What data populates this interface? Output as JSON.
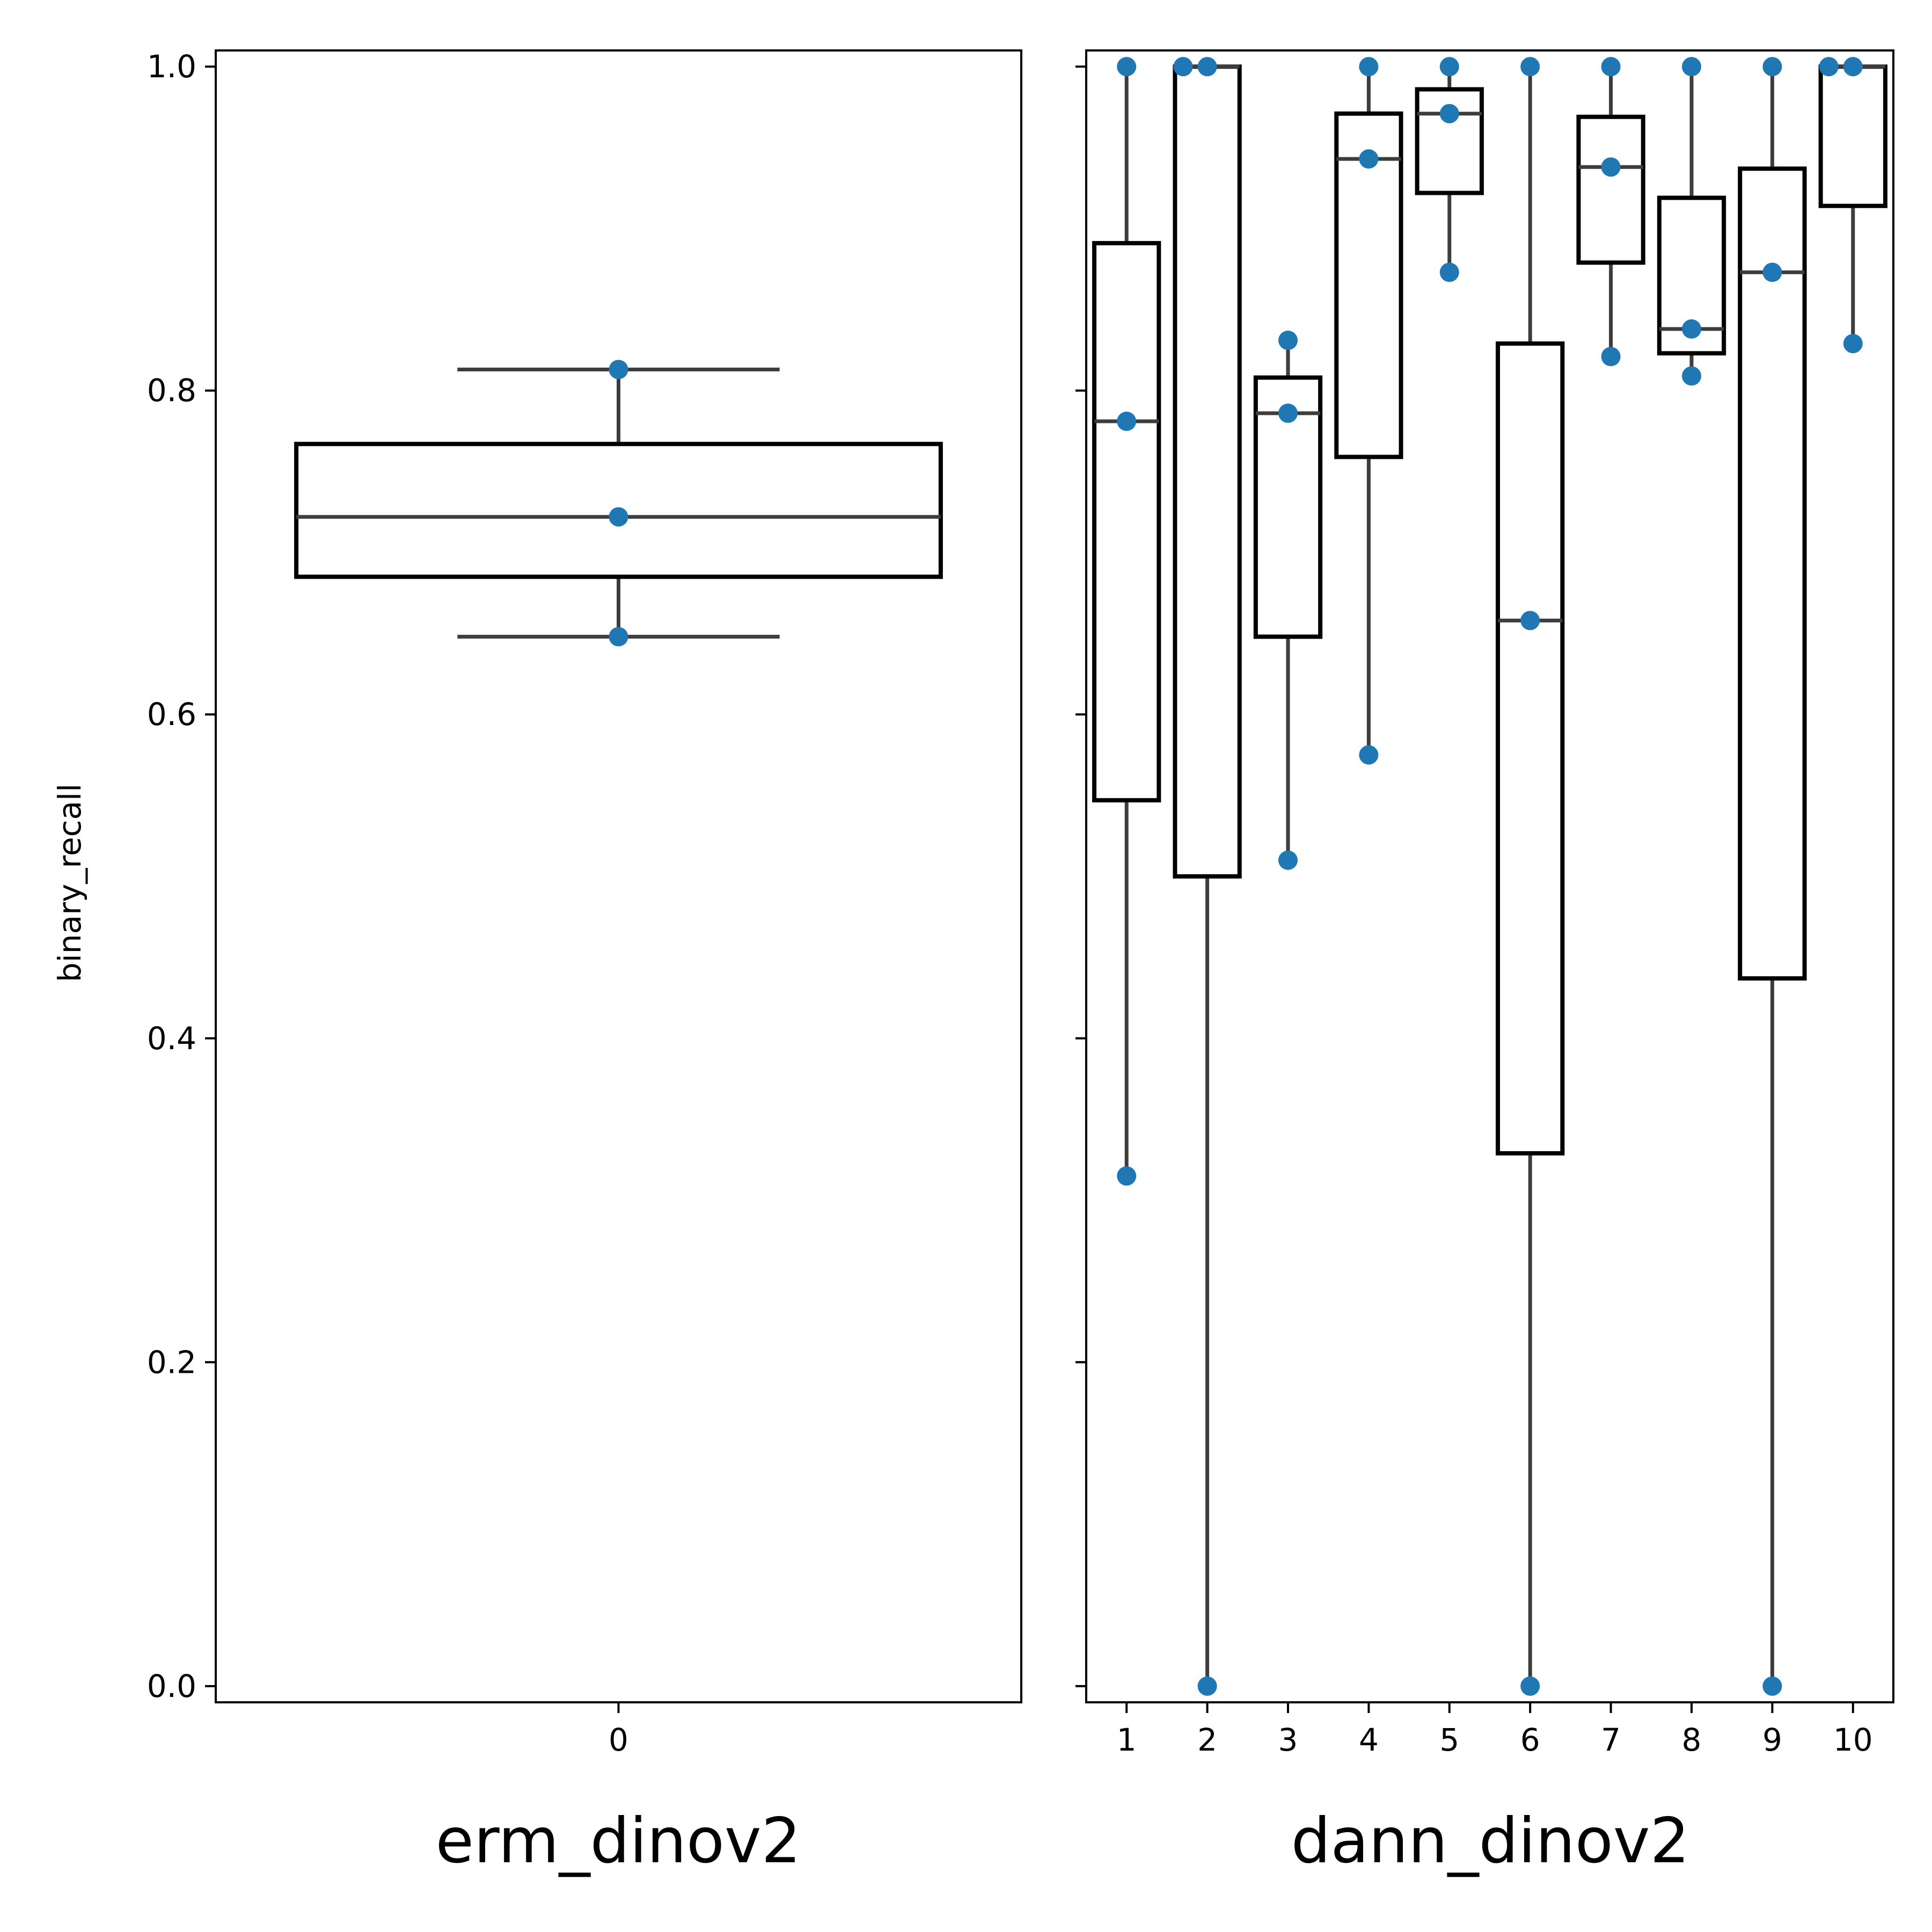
{
  "chart_data": [
    {
      "type": "box",
      "xlabel": "erm_dinov2",
      "ylabel": "binary_recall",
      "ylim": [
        -0.01,
        1.01
      ],
      "yticks": [
        "0.0",
        "0.2",
        "0.4",
        "0.6",
        "0.8",
        "1.0"
      ],
      "categories": [
        "0"
      ],
      "boxes": [
        {
          "category": "0",
          "whislo": 0.648,
          "q1": 0.685,
          "median": 0.722,
          "q3": 0.767,
          "whishi": 0.813,
          "points": [
            0.813,
            0.722,
            0.648
          ]
        }
      ]
    },
    {
      "type": "box",
      "xlabel": "dann_dinov2",
      "ylabel": "",
      "ylim": [
        -0.01,
        1.01
      ],
      "yticks": [
        "0.0",
        "0.2",
        "0.4",
        "0.6",
        "0.8",
        "1.0"
      ],
      "categories": [
        "1",
        "2",
        "3",
        "4",
        "5",
        "6",
        "7",
        "8",
        "9",
        "10"
      ],
      "boxes": [
        {
          "category": "1",
          "whislo": 0.315,
          "q1": 0.547,
          "median": 0.781,
          "q3": 0.891,
          "whishi": 1.0,
          "points": [
            1.0,
            0.781,
            0.315
          ]
        },
        {
          "category": "2",
          "whislo": 0.0,
          "q1": 0.5,
          "median": 1.0,
          "q3": 1.0,
          "whishi": 1.0,
          "points": [
            1.0,
            1.0,
            0.0
          ],
          "point_offsets": [
            -0.3,
            0,
            0
          ]
        },
        {
          "category": "3",
          "whislo": 0.51,
          "q1": 0.648,
          "median": 0.786,
          "q3": 0.808,
          "whishi": 0.831,
          "points": [
            0.831,
            0.786,
            0.51
          ]
        },
        {
          "category": "4",
          "whislo": 0.575,
          "q1": 0.759,
          "median": 0.943,
          "q3": 0.971,
          "whishi": 1.0,
          "points": [
            1.0,
            0.943,
            0.575
          ]
        },
        {
          "category": "5",
          "whislo": 0.873,
          "q1": 0.922,
          "median": 0.971,
          "q3": 0.986,
          "whishi": 1.0,
          "points": [
            1.0,
            0.971,
            0.873
          ]
        },
        {
          "category": "6",
          "whislo": 0.0,
          "q1": 0.329,
          "median": 0.658,
          "q3": 0.829,
          "whishi": 1.0,
          "points": [
            1.0,
            0.658,
            0.0
          ]
        },
        {
          "category": "7",
          "whislo": 0.821,
          "q1": 0.879,
          "median": 0.938,
          "q3": 0.969,
          "whishi": 1.0,
          "points": [
            1.0,
            0.938,
            0.821
          ]
        },
        {
          "category": "8",
          "whislo": 0.809,
          "q1": 0.823,
          "median": 0.838,
          "q3": 0.919,
          "whishi": 1.0,
          "points": [
            1.0,
            0.838,
            0.809
          ]
        },
        {
          "category": "9",
          "whislo": 0.0,
          "q1": 0.437,
          "median": 0.873,
          "q3": 0.937,
          "whishi": 1.0,
          "points": [
            1.0,
            0.873,
            0.0
          ]
        },
        {
          "category": "10",
          "whislo": 0.829,
          "q1": 0.914,
          "median": 1.0,
          "q3": 1.0,
          "whishi": 1.0,
          "points": [
            1.0,
            1.0,
            0.829
          ],
          "point_offsets": [
            -0.3,
            0,
            0
          ]
        }
      ]
    }
  ],
  "colors": {
    "box_edge": "#000000",
    "whisker": "#3d3d3d",
    "point": "#1f77b4",
    "background": "#ffffff"
  }
}
